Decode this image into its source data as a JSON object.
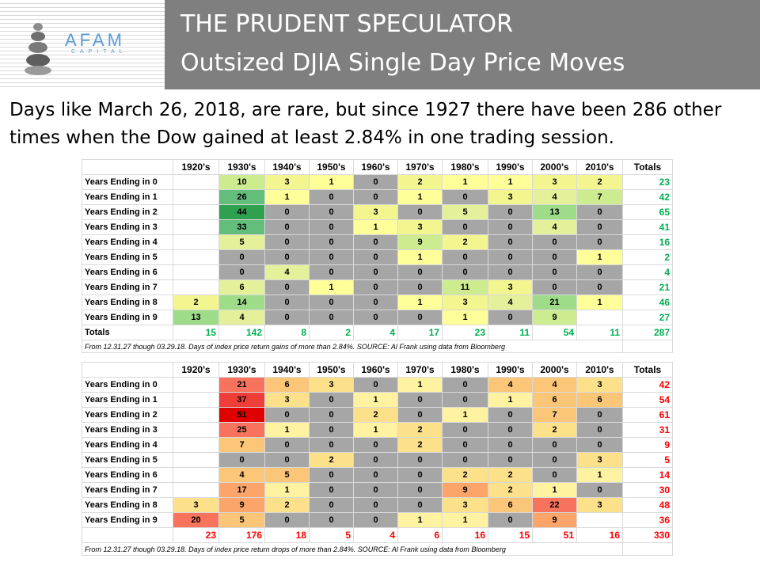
{
  "header": {
    "logo_text": "AFAM",
    "logo_sub": "CAPITAL",
    "title_line1": "THE PRUDENT SPECULATOR",
    "title_line2": "Outsized DJIA Single Day Price Moves"
  },
  "intro": "Days like March 26, 2018, are rare, but since 1927 there have been 286 other times when the Dow gained at least 2.84% in one trading session.",
  "columns": [
    "",
    "1920's",
    "1930's",
    "1940's",
    "1950's",
    "1960's",
    "1970's",
    "1980's",
    "1990's",
    "2000's",
    "2010's",
    "Totals"
  ],
  "gains_table": {
    "rows": [
      {
        "label": "Years Ending in 0",
        "cells": [
          "",
          "10",
          "3",
          "1",
          "0",
          "2",
          "1",
          "1",
          "3",
          "2"
        ],
        "total": "23"
      },
      {
        "label": "Years Ending in 1",
        "cells": [
          "",
          "26",
          "1",
          "0",
          "0",
          "1",
          "0",
          "3",
          "4",
          "7"
        ],
        "total": "42"
      },
      {
        "label": "Years Ending in 2",
        "cells": [
          "",
          "44",
          "0",
          "0",
          "3",
          "0",
          "5",
          "0",
          "13",
          "0"
        ],
        "total": "65"
      },
      {
        "label": "Years Ending in 3",
        "cells": [
          "",
          "33",
          "0",
          "0",
          "1",
          "3",
          "0",
          "0",
          "4",
          "0"
        ],
        "total": "41"
      },
      {
        "label": "Years Ending in 4",
        "cells": [
          "",
          "5",
          "0",
          "0",
          "0",
          "9",
          "2",
          "0",
          "0",
          "0"
        ],
        "total": "16"
      },
      {
        "label": "Years Ending in 5",
        "cells": [
          "",
          "0",
          "0",
          "0",
          "0",
          "1",
          "0",
          "0",
          "0",
          "1"
        ],
        "total": "2"
      },
      {
        "label": "Years Ending in 6",
        "cells": [
          "",
          "0",
          "4",
          "0",
          "0",
          "0",
          "0",
          "0",
          "0",
          "0"
        ],
        "total": "4"
      },
      {
        "label": "Years Ending in 7",
        "cells": [
          "",
          "6",
          "0",
          "1",
          "0",
          "0",
          "11",
          "3",
          "0",
          "0"
        ],
        "total": "21"
      },
      {
        "label": "Years Ending in 8",
        "cells": [
          "2",
          "14",
          "0",
          "0",
          "0",
          "1",
          "3",
          "4",
          "21",
          "1"
        ],
        "total": "46"
      },
      {
        "label": "Years Ending in 9",
        "cells": [
          "13",
          "4",
          "0",
          "0",
          "0",
          "0",
          "1",
          "0",
          "9",
          ""
        ],
        "total": "27"
      }
    ],
    "totals_label": "Totals",
    "totals": [
      "15",
      "142",
      "8",
      "2",
      "4",
      "17",
      "23",
      "11",
      "54",
      "11"
    ],
    "grand_total": "287",
    "footnote": "From 12.31.27 though 03.29.18. Days of index price return gains of more than 2.84%. SOURCE: Al Frank using data from Bloomberg"
  },
  "drops_table": {
    "rows": [
      {
        "label": "Years Ending in 0",
        "cells": [
          "",
          "21",
          "6",
          "3",
          "0",
          "1",
          "0",
          "4",
          "4",
          "3"
        ],
        "total": "42"
      },
      {
        "label": "Years Ending in 1",
        "cells": [
          "",
          "37",
          "3",
          "0",
          "1",
          "0",
          "0",
          "1",
          "6",
          "6"
        ],
        "total": "54"
      },
      {
        "label": "Years Ending in 2",
        "cells": [
          "",
          "51",
          "0",
          "0",
          "2",
          "0",
          "1",
          "0",
          "7",
          "0"
        ],
        "total": "61"
      },
      {
        "label": "Years Ending in 3",
        "cells": [
          "",
          "25",
          "1",
          "0",
          "1",
          "2",
          "0",
          "0",
          "2",
          "0"
        ],
        "total": "31"
      },
      {
        "label": "Years Ending in 4",
        "cells": [
          "",
          "7",
          "0",
          "0",
          "0",
          "2",
          "0",
          "0",
          "0",
          "0"
        ],
        "total": "9"
      },
      {
        "label": "Years Ending in 5",
        "cells": [
          "",
          "0",
          "0",
          "2",
          "0",
          "0",
          "0",
          "0",
          "0",
          "3"
        ],
        "total": "5"
      },
      {
        "label": "Years Ending in 6",
        "cells": [
          "",
          "4",
          "5",
          "0",
          "0",
          "0",
          "2",
          "2",
          "0",
          "1"
        ],
        "total": "14"
      },
      {
        "label": "Years Ending in 7",
        "cells": [
          "",
          "17",
          "1",
          "0",
          "0",
          "0",
          "9",
          "2",
          "1",
          "0"
        ],
        "total": "30"
      },
      {
        "label": "Years Ending in 8",
        "cells": [
          "3",
          "9",
          "2",
          "0",
          "0",
          "0",
          "3",
          "6",
          "22",
          "3"
        ],
        "total": "48"
      },
      {
        "label": "Years Ending in 9",
        "cells": [
          "20",
          "5",
          "0",
          "0",
          "0",
          "1",
          "1",
          "0",
          "9",
          ""
        ],
        "total": "36"
      }
    ],
    "totals_label": "",
    "totals": [
      "23",
      "176",
      "18",
      "5",
      "4",
      "6",
      "16",
      "15",
      "51",
      "16"
    ],
    "grand_total": "330",
    "footnote": "From 12.31.27 though 03.29.18. Days of index price return drops of more than 2.84%. SOURCE: Al Frank using data from Bloomberg"
  }
}
